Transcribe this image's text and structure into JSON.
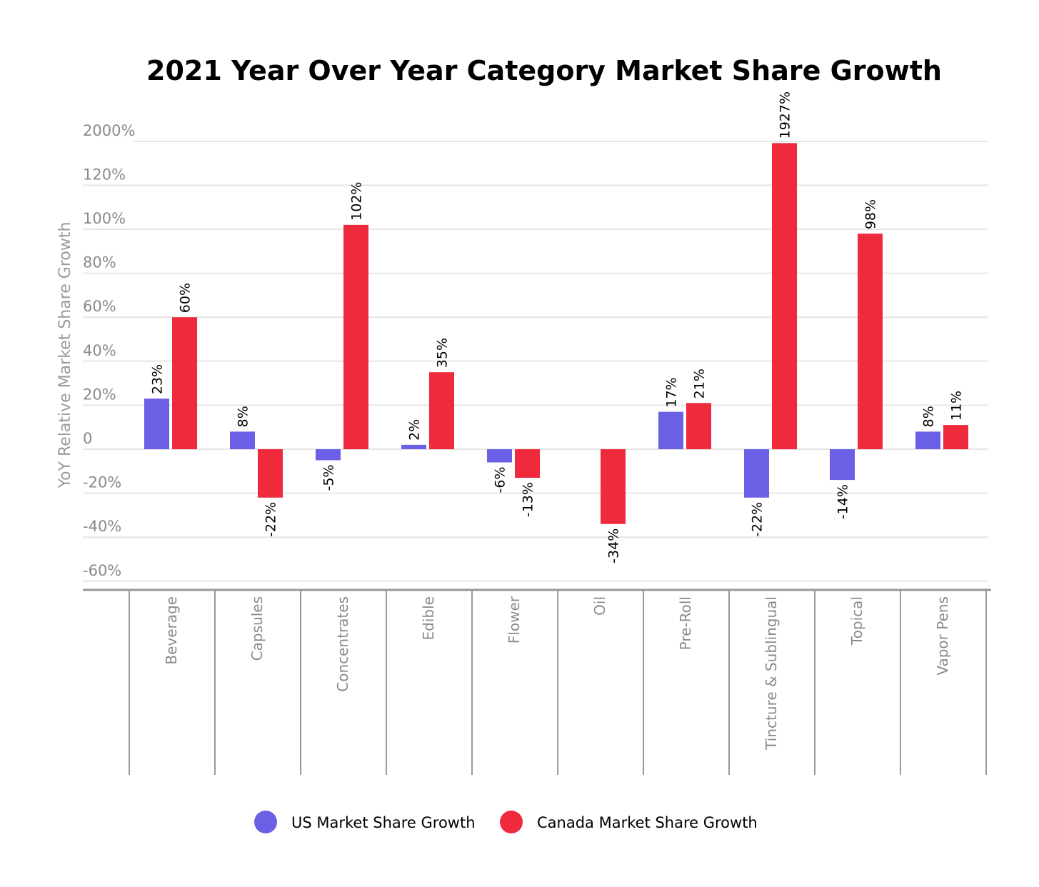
{
  "chart_data": {
    "type": "bar",
    "title": "2021 Year Over Year Category Market Share Growth",
    "ylabel": "YoY Relative Market Share Growth",
    "xlabel": "",
    "y_ticks": [
      "2000%",
      "120%",
      "100%",
      "80%",
      "60%",
      "40%",
      "20%",
      "0",
      "-20%",
      "-40%",
      "-60%"
    ],
    "y_tick_values": [
      2000,
      120,
      100,
      80,
      60,
      40,
      20,
      0,
      -20,
      -40,
      -60
    ],
    "ylim": [
      -60,
      2000
    ],
    "axis_break": "between 120% and 2000%",
    "grid": true,
    "legend_position": "bottom",
    "categories": [
      "Beverage",
      "Capsules",
      "Concentrates",
      "Edible",
      "Flower",
      "Oil",
      "Pre-Roll",
      "Tincture & Sublingual",
      "Topical",
      "Vapor Pens"
    ],
    "series": [
      {
        "name": "US Market Share Growth",
        "color": "#6b5fe6",
        "values": [
          23,
          8,
          -5,
          2,
          -6,
          null,
          17,
          -22,
          -14,
          8
        ],
        "labels": [
          "23%",
          "8%",
          "-5%",
          "2%",
          "-6%",
          "",
          "17%",
          "-22%",
          "-14%",
          "8%"
        ]
      },
      {
        "name": "Canada Market Share Growth",
        "color": "#ee2a3c",
        "values": [
          60,
          -22,
          102,
          35,
          -13,
          -34,
          21,
          1927,
          98,
          11
        ],
        "labels": [
          "60%",
          "-22%",
          "102%",
          "35%",
          "-13%",
          "-34%",
          "21%",
          "1927%",
          "98%",
          "11%"
        ]
      }
    ]
  }
}
